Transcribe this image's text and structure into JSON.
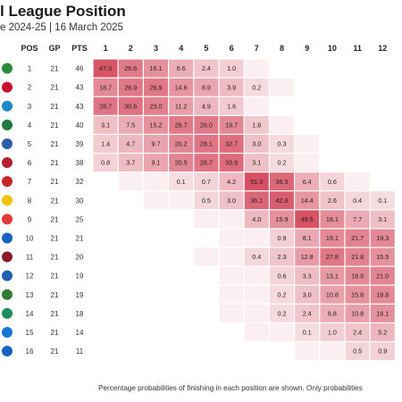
{
  "header": {
    "title": "l League Position",
    "subtitle": "e 2024-25 | 16 March 2025"
  },
  "footnote": "Percentage probabilities of finishing in each position are shown. Only probabilities",
  "colors": {
    "cell_max": "#d64a5e",
    "cell_min": "#f7e4e7",
    "background": "#ffffff"
  },
  "chart_data": {
    "type": "table",
    "columns": [
      "POS",
      "GP",
      "PTS"
    ],
    "positions": [
      "1",
      "2",
      "3",
      "4",
      "5",
      "6",
      "7",
      "8",
      "9",
      "10",
      "11",
      "12"
    ],
    "rows": [
      {
        "badge_color": "#2e8b3a",
        "pos": "1",
        "gp": "21",
        "pts": "46",
        "probs": [
          "47.3",
          "26.6",
          "16.1",
          "6.6",
          "2.4",
          "1.0",
          "",
          "",
          "",
          "",
          "",
          ""
        ]
      },
      {
        "badge_color": "#c8102e",
        "pos": "2",
        "gp": "21",
        "pts": "43",
        "probs": [
          "18.7",
          "26.9",
          "26.9",
          "14.6",
          "8.9",
          "3.9",
          "0.2",
          "",
          "",
          "",
          "",
          ""
        ]
      },
      {
        "badge_color": "#1e88c8",
        "pos": "3",
        "gp": "21",
        "pts": "43",
        "probs": [
          "28.7",
          "30.6",
          "23.0",
          "11.2",
          "4.9",
          "1.6",
          "",
          "",
          "",
          "",
          "",
          ""
        ]
      },
      {
        "badge_color": "#1f7a3d",
        "pos": "4",
        "gp": "21",
        "pts": "40",
        "probs": [
          "3.1",
          "7.5",
          "15.2",
          "26.7",
          "26.0",
          "19.7",
          "1.8",
          "",
          "",
          "",
          "",
          ""
        ]
      },
      {
        "badge_color": "#2a5fa8",
        "pos": "5",
        "gp": "21",
        "pts": "39",
        "probs": [
          "1.4",
          "4.7",
          "9.7",
          "20.2",
          "28.1",
          "32.7",
          "3.0",
          "0.3",
          "",
          "",
          "",
          ""
        ]
      },
      {
        "badge_color": "#b5202e",
        "pos": "6",
        "gp": "21",
        "pts": "38",
        "probs": [
          "0.8",
          "3.7",
          "9.1",
          "20.5",
          "28.7",
          "33.9",
          "3.1",
          "0.2",
          "",
          "",
          "",
          ""
        ]
      },
      {
        "badge_color": "#c62828",
        "pos": "7",
        "gp": "21",
        "pts": "32",
        "probs": [
          "",
          "",
          "",
          "0.1",
          "0.7",
          "4.2",
          "51.3",
          "36.5",
          "6.4",
          "0.6",
          "",
          ""
        ]
      },
      {
        "badge_color": "#f2c200",
        "pos": "8",
        "gp": "21",
        "pts": "30",
        "probs": [
          "",
          "",
          "",
          "",
          "0.5",
          "3.0",
          "36.1",
          "42.8",
          "14.4",
          "2.6",
          "0.4",
          "0.1"
        ]
      },
      {
        "badge_color": "#e53935",
        "pos": "9",
        "gp": "21",
        "pts": "25",
        "probs": [
          "",
          "",
          "",
          "",
          "",
          "",
          "4.0",
          "15.9",
          "49.5",
          "18.1",
          "7.7",
          "3.1"
        ]
      },
      {
        "badge_color": "#1565c0",
        "pos": "10",
        "gp": "21",
        "pts": "21",
        "probs": [
          "",
          "",
          "",
          "",
          "",
          "",
          "",
          "0.9",
          "8.1",
          "19.1",
          "21.7",
          "19.3"
        ]
      },
      {
        "badge_color": "#8e1b2a",
        "pos": "11",
        "gp": "21",
        "pts": "20",
        "probs": [
          "",
          "",
          "",
          "",
          "",
          "",
          "0.4",
          "2.3",
          "12.8",
          "27.8",
          "21.8",
          "15.5"
        ]
      },
      {
        "badge_color": "#1e5fb0",
        "pos": "12",
        "gp": "21",
        "pts": "19",
        "probs": [
          "",
          "",
          "",
          "",
          "",
          "",
          "",
          "0.6",
          "3.3",
          "13.1",
          "18.9",
          "21.0"
        ]
      },
      {
        "badge_color": "#2e7d32",
        "pos": "13",
        "gp": "21",
        "pts": "19",
        "probs": [
          "",
          "",
          "",
          "",
          "",
          "",
          "",
          "0.2",
          "3.0",
          "10.8",
          "15.8",
          "18.8"
        ]
      },
      {
        "badge_color": "#1b8f5a",
        "pos": "14",
        "gp": "21",
        "pts": "18",
        "probs": [
          "",
          "",
          "",
          "",
          "",
          "",
          "",
          "0.2",
          "2.4",
          "6.8",
          "10.8",
          "16.1"
        ]
      },
      {
        "badge_color": "#1976d2",
        "pos": "15",
        "gp": "21",
        "pts": "14",
        "probs": [
          "",
          "",
          "",
          "",
          "",
          "",
          "",
          "",
          "0.1",
          "1.0",
          "2.4",
          "5.2"
        ]
      },
      {
        "badge_color": "#1565c0",
        "pos": "16",
        "gp": "21",
        "pts": "11",
        "probs": [
          "",
          "",
          "",
          "",
          "",
          "",
          "",
          "",
          "",
          "",
          "0.5",
          "0.9"
        ]
      }
    ]
  }
}
